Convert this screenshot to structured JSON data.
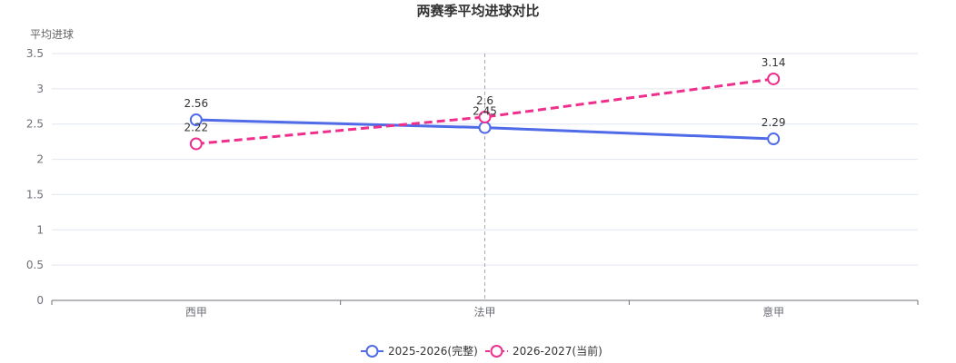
{
  "chart_data": {
    "type": "line",
    "title": "两赛季平均进球对比",
    "xlabel": "",
    "ylabel": "平均进球",
    "categories": [
      "西甲",
      "法甲",
      "意甲"
    ],
    "ylim": [
      0,
      3.5
    ],
    "yticks": [
      "0",
      "0.5",
      "1",
      "1.5",
      "2",
      "2.5",
      "3",
      "3.5"
    ],
    "grid": true,
    "legend_position": "bottom",
    "series": [
      {
        "name": "2025-2026(完整)",
        "values": [
          2.56,
          2.45,
          2.29
        ],
        "labels": [
          "2.56",
          "2.45",
          "2.29"
        ],
        "color": "#4f6be8",
        "dashed": false
      },
      {
        "name": "2026-2027(当前)",
        "values": [
          2.22,
          2.6,
          3.14
        ],
        "labels": [
          "2.22",
          "2.6",
          "3.14"
        ],
        "color": "#ee2f8d",
        "dashed": true
      }
    ],
    "crosshair_category": "法甲"
  }
}
